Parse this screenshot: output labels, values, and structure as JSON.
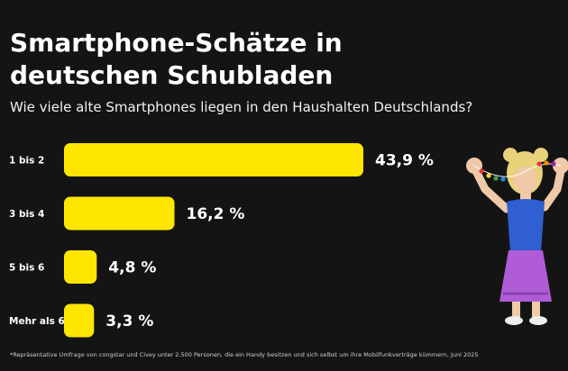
{
  "header": {
    "title": "Smartphone-Schätze in deutschen Schubladen",
    "subtitle": "Wie viele alte Smartphones liegen in den Haushalten Deutschlands?"
  },
  "footnote": "*Repräsentative Umfrage von congstar und Civey unter 2.500 Personen, die ein Handy besitzen und sich selbst um ihre Mobilfunkverträge kümmern, Juni 2025",
  "colors": {
    "background": "#141414",
    "bar": "#FFE600",
    "text": "#FFFFFF"
  },
  "illustration": {
    "name": "woman-with-bead-necklace-photo"
  },
  "chart_data": {
    "type": "bar",
    "orientation": "horizontal",
    "categories": [
      "1 bis 2",
      "3 bis 4",
      "5 bis 6",
      "Mehr als 6"
    ],
    "values": [
      43.9,
      16.2,
      4.8,
      3.3
    ],
    "value_labels": [
      "43,9 %",
      "16,2 %",
      "4,8 %",
      "3,3 %"
    ],
    "unit": "%",
    "title": "Smartphone-Schätze in deutschen Schubladen",
    "subtitle": "Wie viele alte Smartphones liegen in den Haushalten Deutschlands?",
    "xlabel": "",
    "ylabel": "",
    "grid": false,
    "legend": "none"
  }
}
